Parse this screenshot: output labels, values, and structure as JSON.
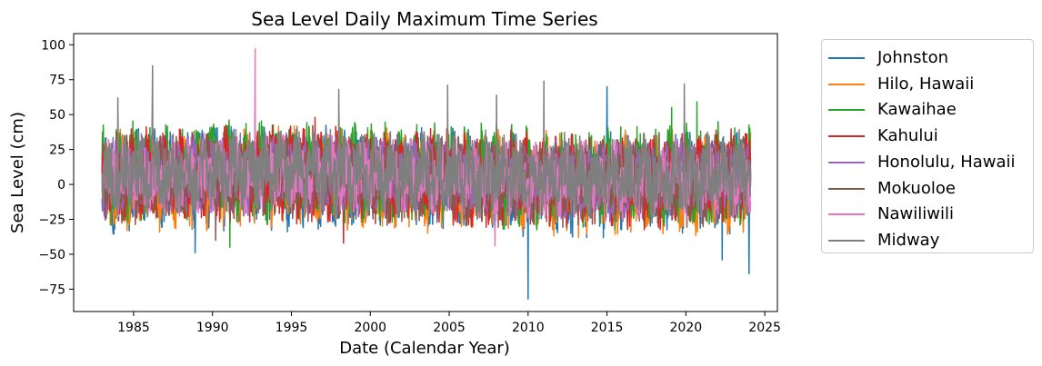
{
  "chart_data": {
    "type": "line",
    "title": "Sea Level Daily Maximum Time Series",
    "xlabel": "Date (Calendar Year)",
    "ylabel": "Sea Level (cm)",
    "xlim": [
      1981.2,
      2025.8
    ],
    "ylim": [
      -91,
      108
    ],
    "xticks": [
      1985,
      1990,
      1995,
      2000,
      2005,
      2010,
      2015,
      2020,
      2025
    ],
    "yticks": [
      -75,
      -50,
      -25,
      0,
      25,
      50,
      75,
      100
    ],
    "x_range": [
      1983.0,
      2024.1
    ],
    "grid": false,
    "legend_position": "outside-right",
    "series": [
      {
        "name": "Johnston",
        "color": "#1f77b4",
        "typical_range": [
          -30,
          35
        ],
        "extremes": [
          {
            "x": 2010.0,
            "y": -82
          },
          {
            "x": 2015.0,
            "y": 70
          },
          {
            "x": 2024.0,
            "y": -64
          },
          {
            "x": 2022.3,
            "y": -54
          },
          {
            "x": 1988.9,
            "y": -49
          }
        ]
      },
      {
        "name": "Hilo, Hawaii",
        "color": "#ff7f0e",
        "typical_range": [
          -30,
          35
        ],
        "extremes": [
          {
            "x": 1992.7,
            "y": 39
          },
          {
            "x": 2013.2,
            "y": -38
          }
        ]
      },
      {
        "name": "Kawaihae",
        "color": "#2ca02c",
        "typical_range": [
          -25,
          40
        ],
        "extremes": [
          {
            "x": 1991.1,
            "y": -45
          },
          {
            "x": 2020.7,
            "y": 59
          },
          {
            "x": 2019.1,
            "y": 55
          }
        ]
      },
      {
        "name": "Kahului",
        "color": "#d62728",
        "typical_range": [
          -25,
          35
        ],
        "extremes": [
          {
            "x": 1998.3,
            "y": -42
          },
          {
            "x": 1996.5,
            "y": 48
          }
        ]
      },
      {
        "name": "Honolulu, Hawaii",
        "color": "#9467bd",
        "typical_range": [
          -20,
          30
        ],
        "extremes": []
      },
      {
        "name": "Mokuoloe",
        "color": "#8c564b",
        "typical_range": [
          -25,
          30
        ],
        "extremes": [
          {
            "x": 1990.2,
            "y": -40
          }
        ]
      },
      {
        "name": "Nawiliwili",
        "color": "#e377c2",
        "typical_range": [
          -20,
          30
        ],
        "extremes": [
          {
            "x": 1992.7,
            "y": 97
          },
          {
            "x": 2007.9,
            "y": -44
          }
        ]
      },
      {
        "name": "Midway",
        "color": "#7f7f7f",
        "typical_range": [
          -20,
          35
        ],
        "extremes": [
          {
            "x": 1986.2,
            "y": 85
          },
          {
            "x": 2011.0,
            "y": 74
          },
          {
            "x": 2019.9,
            "y": 72
          },
          {
            "x": 2004.9,
            "y": 71
          },
          {
            "x": 1998.0,
            "y": 68
          },
          {
            "x": 2008.0,
            "y": 64
          },
          {
            "x": 1984.0,
            "y": 62
          }
        ]
      }
    ]
  }
}
